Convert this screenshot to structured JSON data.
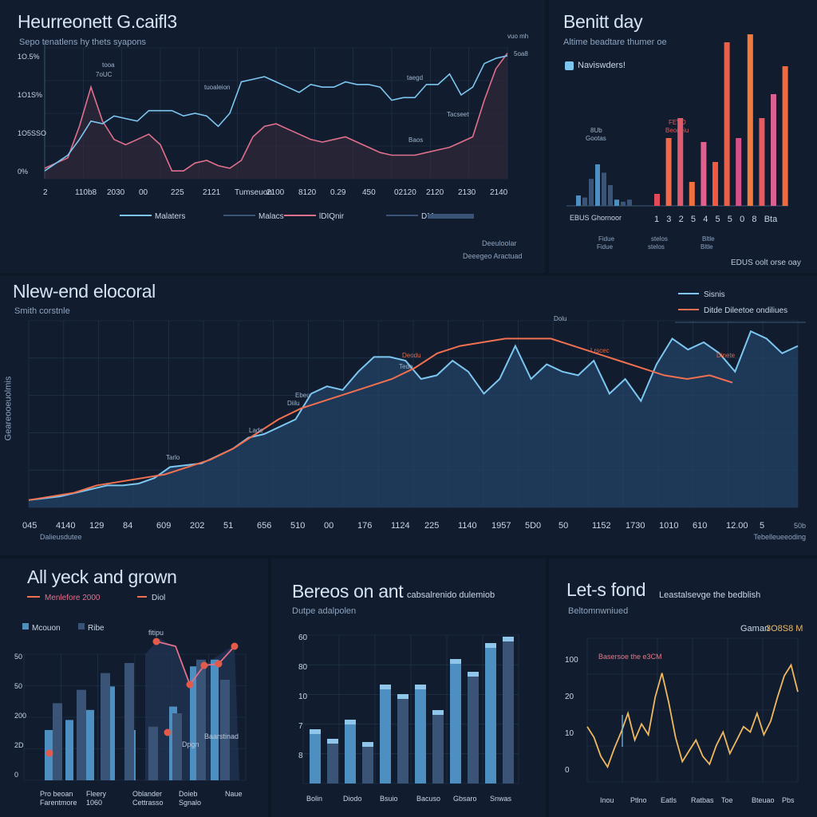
{
  "colors": {
    "bg": "#0d1726",
    "panel": "#111d2f",
    "grid": "#24364f",
    "blue": "#7cc6f0",
    "orange": "#f07050",
    "pink": "#e0708c",
    "navy": "#3a5478",
    "steel": "#4d8fc0",
    "amber": "#f0b860"
  },
  "panels": {
    "top_left": {
      "title": "Heurreonett G.caifl3",
      "subtitle": "Sepo tenatlens hy thets syapons",
      "yticks": [
        "1O.5%",
        "1O1S%",
        "1O5SSO",
        "0%"
      ],
      "xticks": [
        "2",
        "110b8",
        "2030",
        "00",
        "225",
        "2121",
        "Tumseuon",
        "2100",
        "8120",
        "0.29",
        "450",
        "02120",
        "2120",
        "2130",
        "2140"
      ],
      "labels": [
        "tooa",
        "tuoaleion",
        "taegd",
        "Tacseet",
        "Baos",
        "vuo mh",
        "5oa8",
        "7oUC"
      ],
      "legend": [
        "Malaters",
        "Malacs",
        "lDIQnir",
        "DM"
      ],
      "footer": [
        "Deeuloolar",
        "Deeegeo Aractuad"
      ]
    },
    "top_right": {
      "title": "Benitt day",
      "subtitle": "Altime beadtare thumer oe",
      "legend": "Naviswders!",
      "annotations": [
        "8Ub",
        "Gootas",
        "FEVO",
        "Beoneiu"
      ],
      "xticks": [
        "EBUS Ghornoor",
        "1",
        "3",
        "2",
        "5",
        "4",
        "5",
        "5",
        "0",
        "8",
        "Bta"
      ],
      "footer_labels": [
        "Fidue",
        "stelos",
        "Bltle",
        "EDUS oolt orse oay"
      ]
    },
    "middle": {
      "title": "Nlew-end elocoral",
      "subtitle": "Smith corstnle",
      "ylabel": "Geareooeuolmis",
      "legend": [
        "Sisnis",
        "Ditde Dileetoe ondiliues"
      ],
      "annotations": [
        "Dolu",
        "Lrscec",
        "Deodu",
        "Tede",
        "Ebeu",
        "Diilu",
        "Lade",
        "Tarlo",
        "Dinete"
      ],
      "xticks": [
        "045",
        "4140",
        "129",
        "84",
        "609",
        "202",
        "51",
        "656",
        "510",
        "00",
        "176",
        "1124",
        "225",
        "1140",
        "1957",
        "5D0",
        "50",
        "1152",
        "1730",
        "1010",
        "610",
        "12.00",
        "5"
      ],
      "x_caption_left": "Dalieusdutee",
      "x_caption_right": "Tebelleueeoding",
      "x_caption_top_right": "50b"
    },
    "bottom_left": {
      "title": "All yeck and grown",
      "legend_a": "Menlefore 2000",
      "legend_b": "Diol",
      "legend_c": "Mcouon",
      "legend_d": "Ribe",
      "yticks": [
        "50",
        "50",
        "200",
        "2D",
        "0"
      ],
      "annotations": [
        "fitipu",
        "Baarstinad",
        "Dpgn"
      ],
      "xlabels": [
        [
          "Pro beoan",
          "Farentmore"
        ],
        [
          "Fleery",
          "1060"
        ],
        [
          "Oblander",
          "Cettrasso"
        ],
        [
          "Doieb",
          "Sgnalo"
        ],
        [
          "Naue"
        ]
      ]
    },
    "bottom_middle": {
      "title": "Bereos on ant",
      "title_suffix": "cabsalrenido dulemiob",
      "subtitle": "Dutpe adalpolen",
      "yticks": [
        "60",
        "80",
        "10",
        "7",
        "8"
      ],
      "xlabels": [
        "Bolin",
        "Diodo",
        "Bsuio",
        "Bacuso",
        "Gbsaro",
        "Snwas"
      ]
    },
    "bottom_right": {
      "title": "Let-s fond",
      "title_suffix": "Leastalsevge the bedblish",
      "subtitle": "Beltomnwniued",
      "legend_name": "Gaman",
      "legend_value": "3O8S8 M",
      "annotation": "Basersoe the e3CM",
      "yticks": [
        "100",
        "20",
        "10",
        "0"
      ],
      "xlabels": [
        "Inou",
        "Ptlno",
        "Eatls",
        "Ratbas",
        "Toe",
        "Bteuao",
        "Pbs"
      ]
    }
  },
  "chart_data": [
    {
      "type": "line",
      "title": "Heurreonett G.caifl3",
      "series": [
        {
          "name": "Malaters",
          "color": "#7cc6f0",
          "values": [
            6,
            12,
            18,
            30,
            44,
            42,
            48,
            46,
            44,
            52,
            52,
            52,
            48,
            50,
            48,
            40,
            50,
            74,
            76,
            78,
            74,
            70,
            66,
            72,
            70,
            70,
            74,
            72,
            72,
            70,
            60,
            62,
            62,
            72,
            72,
            80,
            64,
            70,
            88,
            92,
            94
          ]
        },
        {
          "name": "lDIQnir",
          "color": "#e0708c",
          "values": [
            8,
            12,
            16,
            40,
            70,
            44,
            30,
            26,
            30,
            34,
            26,
            6,
            6,
            12,
            14,
            10,
            8,
            14,
            32,
            40,
            42,
            38,
            34,
            30,
            28,
            30,
            32,
            28,
            24,
            20,
            18,
            18,
            18,
            20,
            22,
            24,
            28,
            32,
            60,
            84,
            96
          ]
        }
      ]
    },
    {
      "type": "bar",
      "title": "Benitt day",
      "series": [
        {
          "name": "Naviswders!",
          "values": [
            10,
            8,
            26,
            40,
            32,
            20,
            6,
            4,
            6
          ]
        },
        {
          "name": "",
          "values": [
            6,
            34,
            44,
            12,
            32,
            22,
            82,
            34,
            86,
            44,
            56,
            70
          ]
        }
      ]
    },
    {
      "type": "area",
      "title": "Nlew-end elocoral",
      "series": [
        {
          "name": "Sisnis",
          "color": "#7cc6f0",
          "values": [
            4,
            5,
            6,
            8,
            10,
            12,
            12,
            13,
            16,
            22,
            23,
            24,
            28,
            32,
            38,
            40,
            44,
            48,
            62,
            66,
            64,
            74,
            82,
            82,
            80,
            70,
            72,
            80,
            74,
            62,
            70,
            88,
            70,
            78,
            74,
            72,
            80,
            62,
            70,
            58,
            78,
            92,
            86,
            90,
            84,
            74,
            96,
            92,
            84,
            88
          ]
        },
        {
          "name": "Ditde Dileetoe ondiliues",
          "color": "#f07050",
          "values": [
            4,
            6,
            8,
            12,
            14,
            16,
            18,
            22,
            26,
            32,
            40,
            48,
            54,
            58,
            62,
            66,
            70,
            76,
            84,
            88,
            90,
            92,
            92,
            92,
            88,
            84,
            80,
            76,
            72,
            70,
            72,
            68
          ]
        }
      ]
    },
    {
      "type": "bar",
      "title": "All yeck and grown",
      "series": [
        {
          "name": "Mcouon",
          "values": [
            30,
            36,
            42,
            56,
            30,
            22,
            44,
            68,
            72
          ]
        },
        {
          "name": "Ribe",
          "values": [
            46,
            54,
            64,
            70,
            32,
            40,
            72,
            60
          ]
        }
      ]
    },
    {
      "type": "bar",
      "title": "Bereos on ant",
      "values": [
        34,
        28,
        40,
        26,
        62,
        56,
        62,
        46,
        78,
        70,
        88,
        92
      ],
      "ylim": [
        0,
        100
      ]
    },
    {
      "type": "line",
      "title": "Let-s fond",
      "series": [
        {
          "name": "Gaman",
          "color": "#f0b860",
          "values": [
            40,
            32,
            18,
            10,
            24,
            36,
            50,
            30,
            42,
            34,
            62,
            80,
            58,
            32,
            14,
            22,
            30,
            18,
            12,
            26,
            36,
            20,
            30,
            40,
            36,
            50,
            34,
            44,
            62,
            78,
            86,
            66
          ]
        }
      ]
    }
  ]
}
